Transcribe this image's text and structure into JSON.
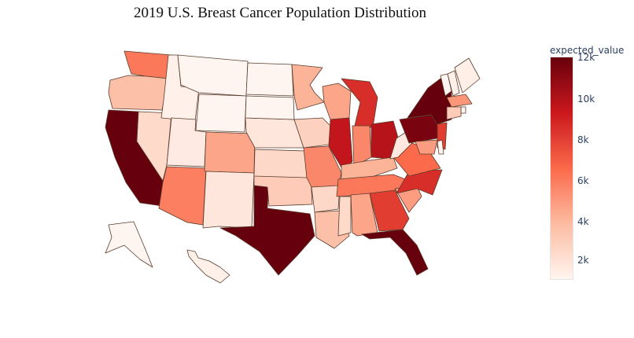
{
  "title": "2019 U.S. Breast Cancer Population Distribution",
  "colorbar": {
    "title": "expected_value",
    "ticks": [
      "12k",
      "10k",
      "8k",
      "6k",
      "4k",
      "2k"
    ]
  },
  "chart_data": {
    "type": "choropleth",
    "variable": "expected_value",
    "colorscale": [
      "#fff5f0",
      "#fcbba1",
      "#fb6a4a",
      "#cb181d",
      "#67000d"
    ],
    "range": [
      1000,
      12000
    ],
    "values": {
      "WA": 6000,
      "OR": 3500,
      "CA": 12000,
      "NV": 2300,
      "ID": 1200,
      "MT": 1000,
      "WY": 1000,
      "UT": 1500,
      "AZ": 5800,
      "CO": 4500,
      "NM": 1700,
      "TX": 12000,
      "OK": 3000,
      "KS": 2400,
      "NE": 1700,
      "SD": 1000,
      "ND": 1000,
      "MN": 4000,
      "IA": 2700,
      "MO": 5500,
      "AR": 2400,
      "LA": 3500,
      "WI": 4500,
      "IL": 9500,
      "MI": 8500,
      "IN": 5500,
      "OH": 9800,
      "KY": 4000,
      "TN": 6000,
      "MS": 2300,
      "AL": 4500,
      "GA": 8000,
      "FL": 12000,
      "SC": 4800,
      "NC": 8500,
      "VA": 6500,
      "WV": 1600,
      "PA": 11500,
      "NY": 12000,
      "VT": 1000,
      "NH": 1200,
      "ME": 1300,
      "MA": 5000,
      "RI": 1000,
      "CT": 3000,
      "NJ": 8000,
      "DE": 1000,
      "MD": 4800,
      "AK": 1000,
      "HI": 1200
    }
  }
}
